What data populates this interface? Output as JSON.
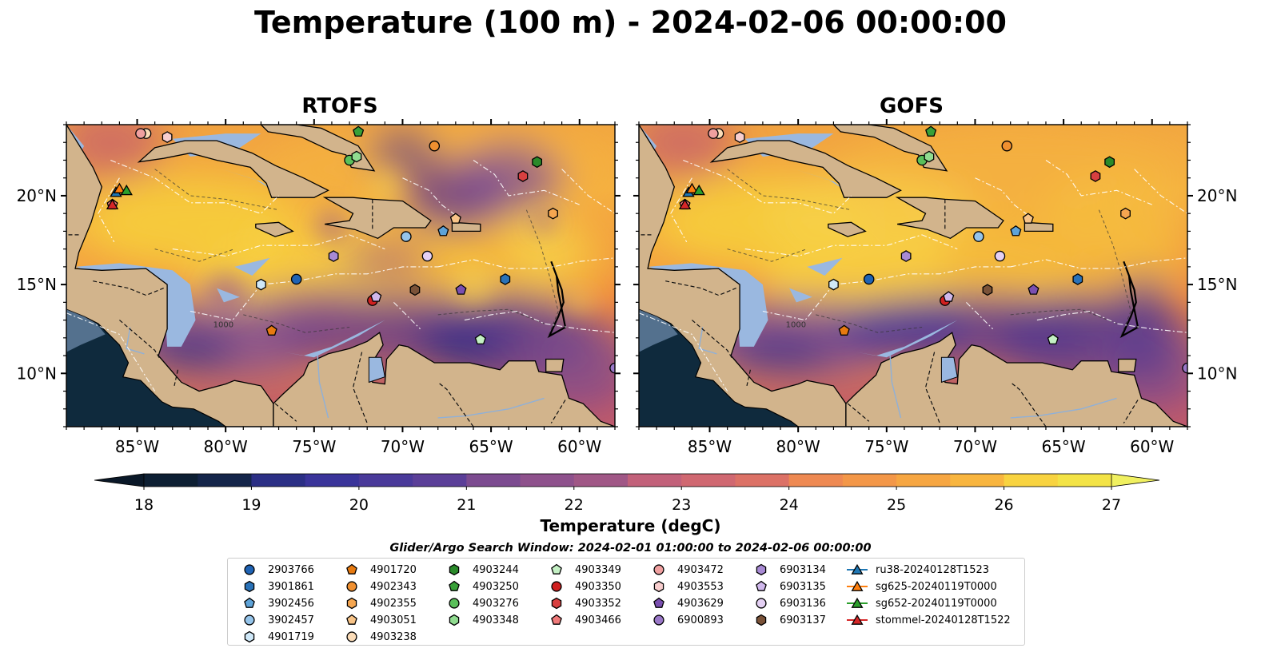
{
  "title": "Temperature (100 m) - 2024-02-06 00:00:00",
  "panels": [
    {
      "title": "RTOFS",
      "variant": "rtofs"
    },
    {
      "title": "GOFS",
      "variant": "gofs"
    }
  ],
  "map": {
    "lon_range": [
      -89,
      -58
    ],
    "lat_range": [
      7,
      24
    ],
    "lon_ticks": [
      "85°W",
      "80°W",
      "75°W",
      "70°W",
      "65°W",
      "60°W"
    ],
    "lat_ticks": [
      "20°N",
      "15°N",
      "10°N"
    ],
    "land_color": "#d2b48c",
    "shallow_color": "#9ab8e0",
    "contour_labels": [
      "1000"
    ]
  },
  "colorbar": {
    "label": "Temperature (degC)",
    "min": 18,
    "max": 27,
    "ticks": [
      "18",
      "19",
      "20",
      "21",
      "22",
      "23",
      "24",
      "25",
      "26",
      "27"
    ],
    "extend": "both",
    "colormap": "thermal"
  },
  "legend": {
    "title": "Glider/Argo Search Window: 2024-02-01 01:00:00 to 2024-02-06 00:00:00",
    "items": [
      {
        "label": "2903766",
        "marker": "circle",
        "color": "#1f63b4",
        "lon": -76.0,
        "lat": 15.3
      },
      {
        "label": "3901861",
        "marker": "hexagon",
        "color": "#2a72b8",
        "lon": -64.2,
        "lat": 15.3
      },
      {
        "label": "3902456",
        "marker": "pentagon",
        "color": "#5ea3d8",
        "lon": -67.7,
        "lat": 18.0
      },
      {
        "label": "3902457",
        "marker": "circle",
        "color": "#95c4ea",
        "lon": -69.8,
        "lat": 17.7
      },
      {
        "label": "4901719",
        "marker": "hexagon",
        "color": "#cfe8f8",
        "lon": -78.0,
        "lat": 15.0
      },
      {
        "label": "4901720",
        "marker": "pentagon",
        "color": "#e77a10",
        "lon": -77.4,
        "lat": 12.4
      },
      {
        "label": "4902343",
        "marker": "circle",
        "color": "#f09030",
        "lon": -68.2,
        "lat": 22.8
      },
      {
        "label": "4902355",
        "marker": "hexagon",
        "color": "#f5a650",
        "lon": -61.5,
        "lat": 19.0
      },
      {
        "label": "4903051",
        "marker": "pentagon",
        "color": "#f8c488",
        "lon": -67.0,
        "lat": 18.7
      },
      {
        "label": "4903238",
        "marker": "circle",
        "color": "#fbdcb8",
        "lon": -84.5,
        "lat": 23.5
      },
      {
        "label": "4903244",
        "marker": "hexagon",
        "color": "#2a8a2a",
        "lon": -62.4,
        "lat": 21.9
      },
      {
        "label": "4903250",
        "marker": "pentagon",
        "color": "#38a038",
        "lon": -72.5,
        "lat": 23.6
      },
      {
        "label": "4903276",
        "marker": "circle",
        "color": "#5ac05a",
        "lon": -73.0,
        "lat": 22.0
      },
      {
        "label": "4903348",
        "marker": "hexagon",
        "color": "#90dc90",
        "lon": -72.6,
        "lat": 22.2
      },
      {
        "label": "4903349",
        "marker": "pentagon",
        "color": "#c4f0c4",
        "lon": -65.6,
        "lat": 11.9
      },
      {
        "label": "4903350",
        "marker": "circle",
        "color": "#d02020",
        "lon": -71.7,
        "lat": 14.1
      },
      {
        "label": "4903352",
        "marker": "hexagon",
        "color": "#d84040",
        "lon": -63.2,
        "lat": 21.1
      },
      {
        "label": "4903466",
        "marker": "pentagon",
        "color": "#f07a7a",
        "lon": -86.4,
        "lat": 19.5
      },
      {
        "label": "4903472",
        "marker": "circle",
        "color": "#f0a0a0",
        "lon": -84.8,
        "lat": 23.5
      },
      {
        "label": "4903553",
        "marker": "hexagon",
        "color": "#f8cece",
        "lon": -83.3,
        "lat": 23.3
      },
      {
        "label": "4903629",
        "marker": "pentagon",
        "color": "#7a4fb0",
        "lon": -66.7,
        "lat": 14.7
      },
      {
        "label": "6900893",
        "marker": "circle",
        "color": "#9a78c8",
        "lon": -58.0,
        "lat": 10.3
      },
      {
        "label": "6903134",
        "marker": "hexagon",
        "color": "#a88ad4",
        "lon": -73.9,
        "lat": 16.6
      },
      {
        "label": "6903135",
        "marker": "pentagon",
        "color": "#d0b8ec",
        "lon": -71.5,
        "lat": 14.3
      },
      {
        "label": "6903136",
        "marker": "circle",
        "color": "#e4d0f4",
        "lon": -68.6,
        "lat": 16.6
      },
      {
        "label": "6903137",
        "marker": "hexagon",
        "color": "#7a5238",
        "lon": -69.3,
        "lat": 14.7
      },
      {
        "label": "ru38-20240128T1523",
        "marker": "triangle-line",
        "color": "#1f77b4",
        "lon": -86.2,
        "lat": 20.2
      },
      {
        "label": "sg625-20240119T0000",
        "marker": "triangle-line",
        "color": "#ff7f0e",
        "lon": -86.0,
        "lat": 20.4
      },
      {
        "label": "sg652-20240119T0000",
        "marker": "triangle-line",
        "color": "#2ca02c",
        "lon": -85.6,
        "lat": 20.3
      },
      {
        "label": "stommel-20240128T1522",
        "marker": "triangle-line",
        "color": "#d62728",
        "lon": -86.4,
        "lat": 19.5
      }
    ]
  }
}
